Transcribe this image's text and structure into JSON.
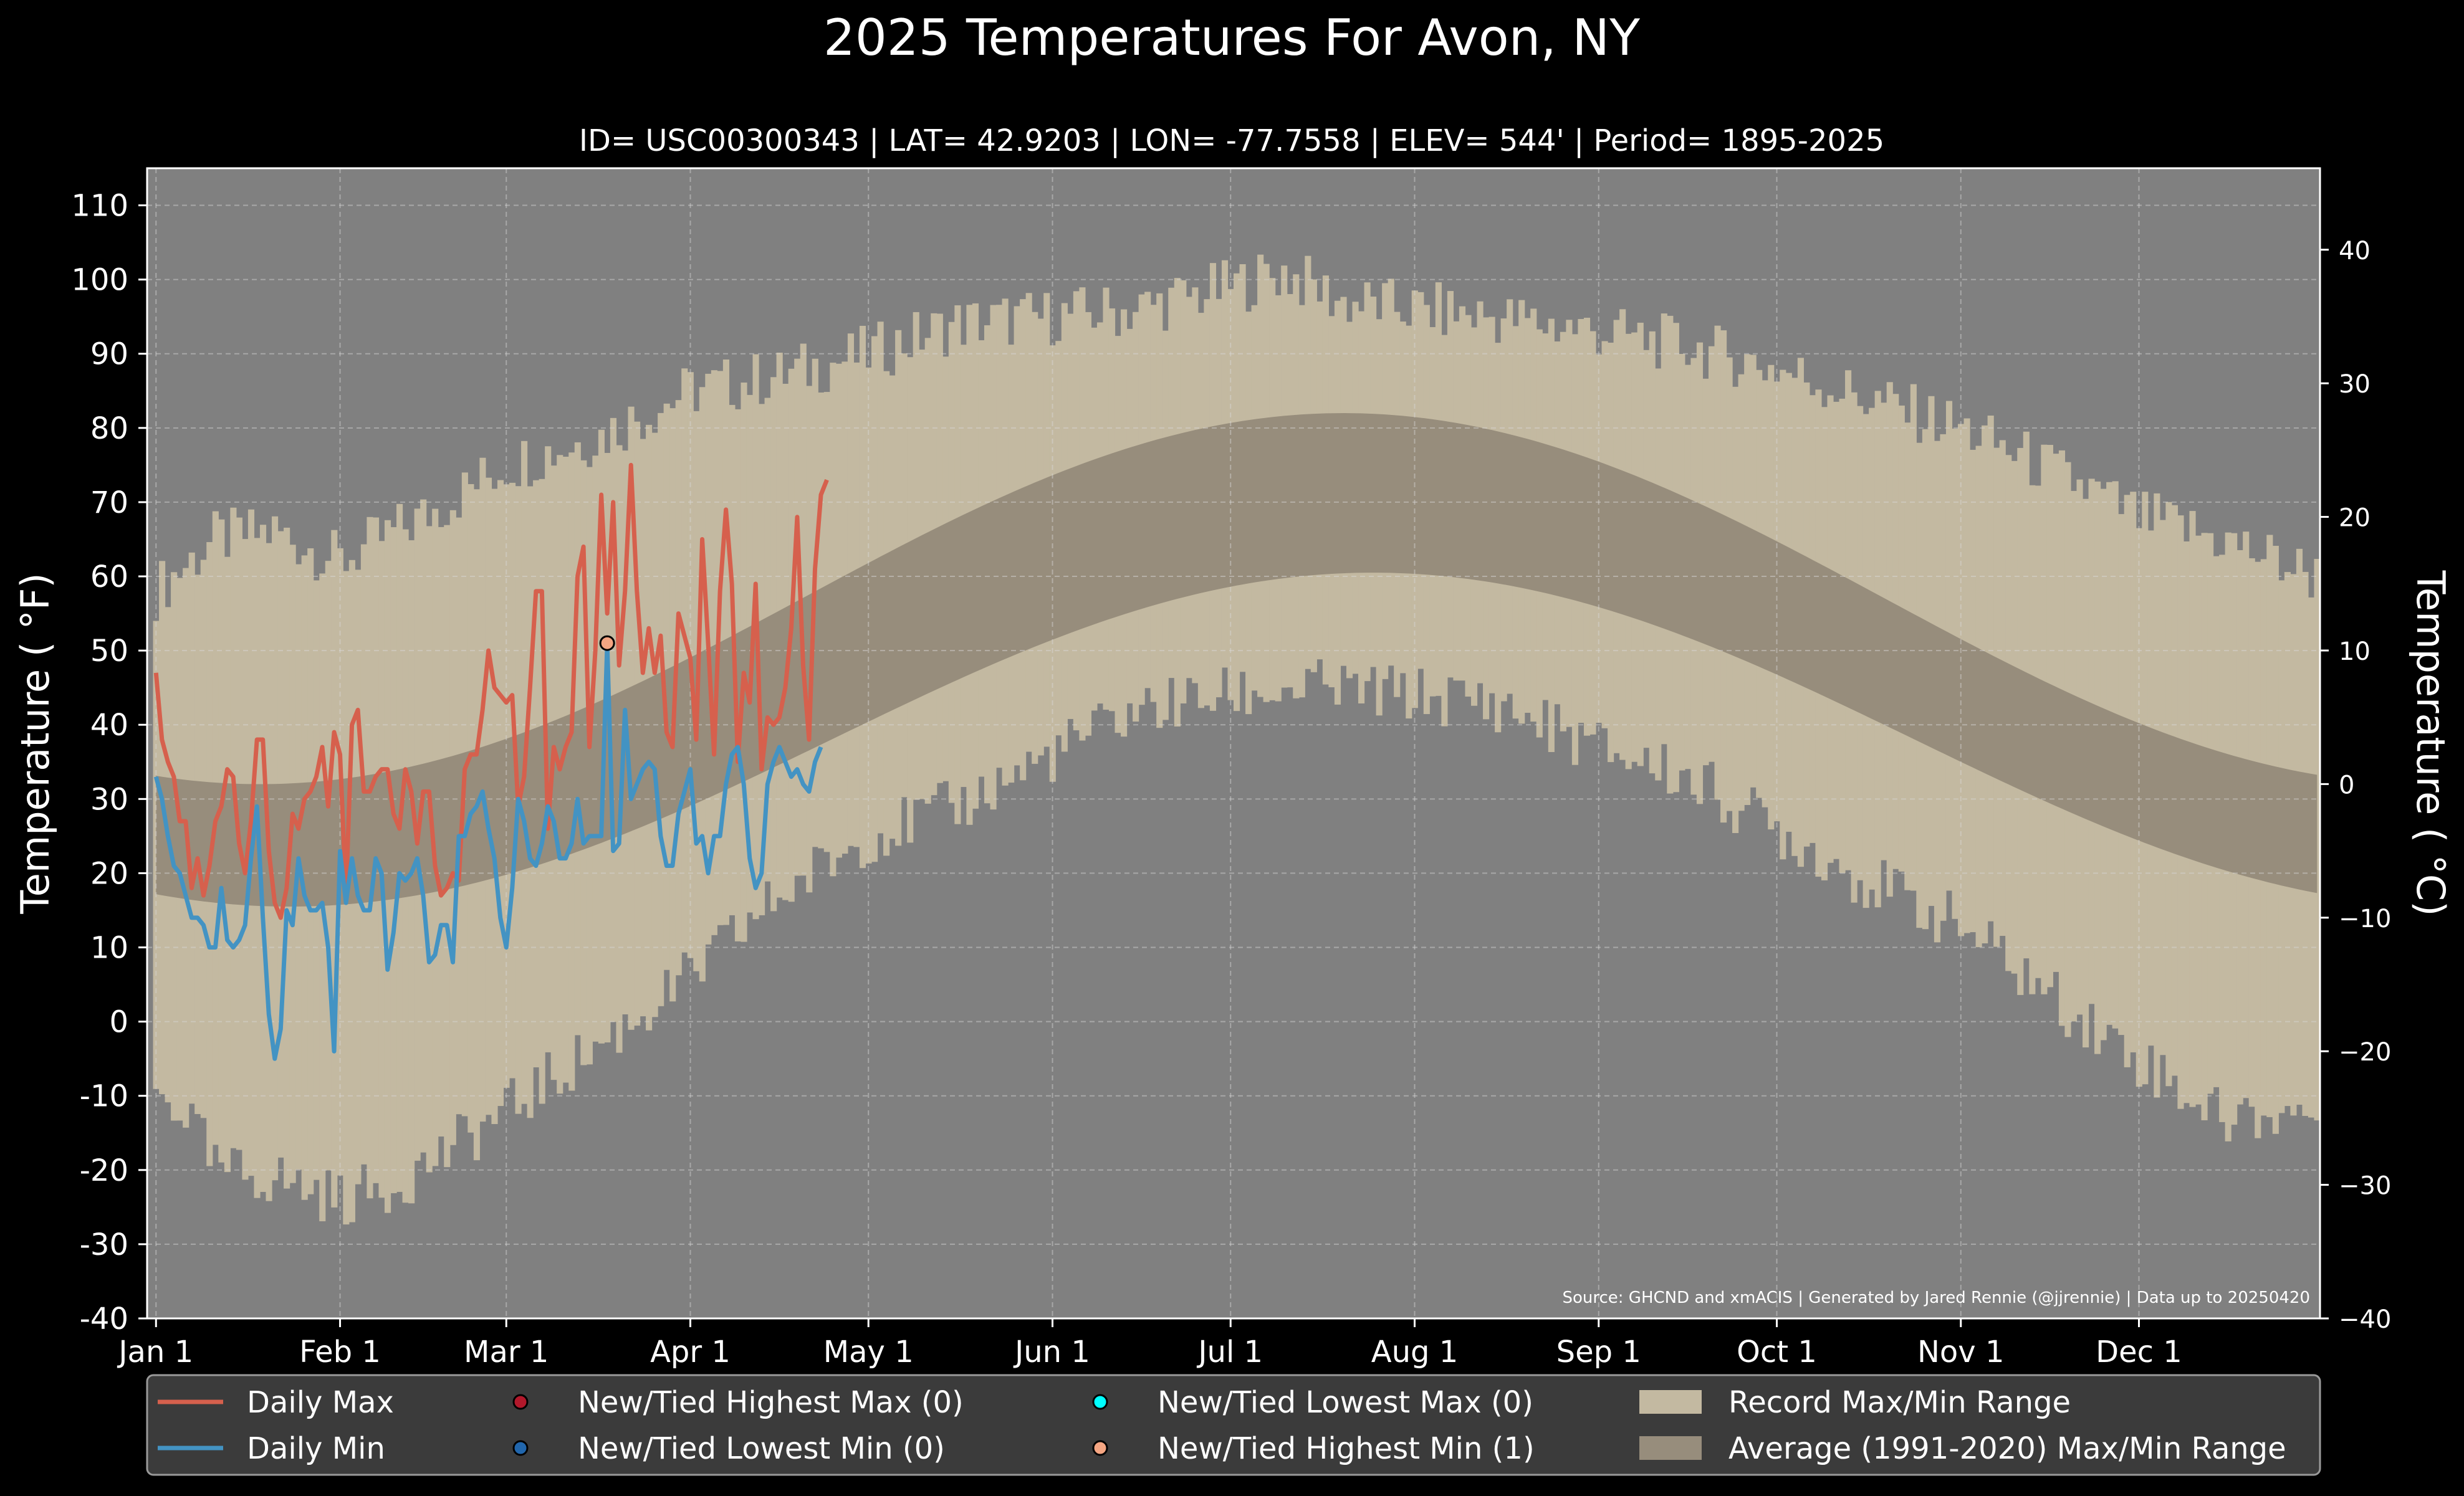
{
  "chart_data": {
    "type": "line",
    "title": "2025 Temperatures For Avon, NY",
    "subtitle": "ID= USC00300343 | LAT= 42.9203 | LON= -77.7558 | ELEV= 544' | Period= 1895-2025",
    "ylabel": "Temperature ( °F)",
    "ylabel_right": "Temperature ( °C)",
    "source": "Source: GHCND and xmACIS | Generated by Jared Rennie (@jjrennie) | Data up to 20250420",
    "ylim": [
      -40,
      115
    ],
    "y2lim": [
      -40,
      46.1
    ],
    "xlim": [
      -1.5,
      364.5
    ],
    "yticks": [
      "110",
      "100",
      "90",
      "80",
      "70",
      "60",
      "50",
      "40",
      "30",
      "20",
      "10",
      "0",
      "-10",
      "-20",
      "-30",
      "-40"
    ],
    "yticks2": [
      "40",
      "30",
      "20",
      "10",
      "0",
      "−10",
      "−20",
      "−30",
      "−40"
    ],
    "xticks": [
      {
        "label": "Jan 1",
        "day": 0
      },
      {
        "label": "Feb 1",
        "day": 31
      },
      {
        "label": "Mar 1",
        "day": 59
      },
      {
        "label": "Apr 1",
        "day": 90
      },
      {
        "label": "May 1",
        "day": 120
      },
      {
        "label": "Jun 1",
        "day": 151
      },
      {
        "label": "Jul 1",
        "day": 181
      },
      {
        "label": "Aug 1",
        "day": 212
      },
      {
        "label": "Sep 1",
        "day": 243
      },
      {
        "label": "Oct 1",
        "day": 273
      },
      {
        "label": "Nov 1",
        "day": 304
      },
      {
        "label": "Dec 1",
        "day": 334
      }
    ],
    "grid": true,
    "legend_position": "bottom",
    "series": [
      {
        "name": "Daily Max",
        "color": "#d6604d",
        "values": [
          47,
          38,
          35,
          33,
          27,
          27,
          18,
          22,
          17,
          21,
          27,
          29,
          34,
          33,
          24,
          20,
          27,
          38,
          38,
          23,
          16,
          14,
          18,
          28,
          26,
          30,
          31,
          33,
          37,
          29,
          39,
          36,
          17,
          40,
          42,
          31,
          31,
          33,
          34,
          34,
          28,
          26,
          34,
          31,
          24,
          31,
          31,
          21,
          17,
          18,
          20,
          19,
          34,
          36,
          36,
          42,
          50,
          45,
          44,
          43,
          44,
          29,
          33,
          45,
          58,
          58,
          26,
          37,
          34,
          37,
          39,
          60,
          64,
          37,
          50,
          71,
          55,
          70,
          48,
          58,
          75,
          58,
          47,
          53,
          47,
          52,
          39,
          37,
          55,
          52,
          49,
          38,
          65,
          51,
          36,
          58,
          69,
          59,
          35,
          47,
          43,
          59,
          34,
          41,
          40,
          41,
          45,
          53,
          68,
          48,
          38,
          61,
          71,
          73
        ]
      },
      {
        "name": "Daily Min",
        "color": "#4393c3",
        "values": [
          33,
          30,
          25,
          21,
          20,
          17,
          14,
          14,
          13,
          10,
          10,
          18,
          11,
          10,
          11,
          13,
          22,
          29,
          14,
          1,
          -5,
          -1,
          15,
          13,
          22,
          17,
          15,
          15,
          16,
          10,
          -4,
          23,
          16,
          22,
          17,
          15,
          15,
          22,
          20,
          7,
          12,
          20,
          19,
          20,
          22,
          17,
          8,
          9,
          13,
          13,
          8,
          25,
          25,
          28,
          29,
          31,
          26,
          22,
          14,
          10,
          18,
          30,
          27,
          22,
          21,
          24,
          29,
          27,
          22,
          22,
          24,
          30,
          24,
          25,
          25,
          25,
          51,
          23,
          24,
          42,
          30,
          32,
          34,
          35,
          34,
          25,
          21,
          21,
          28,
          31,
          34,
          24,
          25,
          20,
          25,
          25,
          32,
          36,
          37,
          32,
          22,
          18,
          20,
          32,
          35,
          37,
          35,
          33,
          34,
          32,
          31,
          35,
          37
        ]
      }
    ],
    "record_points": [
      {
        "name": "New/Tied Highest Min (1)",
        "day": 76,
        "value": 51,
        "color": "#f4a582"
      }
    ],
    "legend": [
      {
        "label": "Daily Max",
        "kind": "line",
        "color": "#d6604d"
      },
      {
        "label": "Daily Min",
        "kind": "line",
        "color": "#4393c3"
      },
      {
        "label": "New/Tied Highest Max (0)",
        "kind": "marker",
        "color": "#b2182b"
      },
      {
        "label": "New/Tied Lowest Min (0)",
        "kind": "marker",
        "color": "#2166ac"
      },
      {
        "label": "New/Tied Lowest Max (0)",
        "kind": "marker",
        "color": "#00ffff"
      },
      {
        "label": "New/Tied Highest Min (1)",
        "kind": "marker",
        "color": "#f4a582"
      },
      {
        "label": "Record Max/Min Range",
        "kind": "patch",
        "color": "#c3b9a1"
      },
      {
        "label": "Average (1991-2020) Max/Min Range",
        "kind": "patch",
        "color": "#978d7c"
      }
    ],
    "record_range": {
      "color": "#c3b9a1",
      "max_anchors": [
        [
          0,
          58
        ],
        [
          10,
          65
        ],
        [
          20,
          66
        ],
        [
          31,
          62
        ],
        [
          45,
          68
        ],
        [
          59,
          75
        ],
        [
          75,
          79
        ],
        [
          90,
          85
        ],
        [
          105,
          87
        ],
        [
          120,
          90
        ],
        [
          135,
          94
        ],
        [
          151,
          95
        ],
        [
          165,
          96
        ],
        [
          181,
          99
        ],
        [
          190,
          101
        ],
        [
          200,
          97
        ],
        [
          212,
          96
        ],
        [
          225,
          95
        ],
        [
          243,
          93
        ],
        [
          258,
          91
        ],
        [
          273,
          88
        ],
        [
          288,
          84
        ],
        [
          304,
          80
        ],
        [
          320,
          74
        ],
        [
          334,
          68
        ],
        [
          348,
          65
        ],
        [
          364,
          60
        ]
      ],
      "min_anchors": [
        [
          0,
          -10
        ],
        [
          5,
          -12
        ],
        [
          10,
          -20
        ],
        [
          20,
          -21
        ],
        [
          31,
          -24
        ],
        [
          40,
          -22
        ],
        [
          50,
          -17
        ],
        [
          59,
          -12
        ],
        [
          75,
          -3
        ],
        [
          90,
          6
        ],
        [
          105,
          17
        ],
        [
          120,
          25
        ],
        [
          135,
          29
        ],
        [
          151,
          36
        ],
        [
          165,
          42
        ],
        [
          181,
          44
        ],
        [
          195,
          45
        ],
        [
          212,
          44
        ],
        [
          225,
          43
        ],
        [
          243,
          37
        ],
        [
          258,
          33
        ],
        [
          273,
          26
        ],
        [
          288,
          19
        ],
        [
          304,
          13
        ],
        [
          320,
          3
        ],
        [
          334,
          -5
        ],
        [
          348,
          -13
        ],
        [
          364,
          -12
        ]
      ]
    },
    "average_range": {
      "color": "#978d7c",
      "max_mean": 57,
      "max_amplitude": 25,
      "max_peak_day": 200,
      "min_mean": 38,
      "min_amplitude": 22.5,
      "min_peak_day": 205
    },
    "colors": {
      "figure_bg": "#000000",
      "plot_bg": "#808080",
      "legend_bg": "#3b3b3b",
      "text": "#ffffff"
    }
  }
}
